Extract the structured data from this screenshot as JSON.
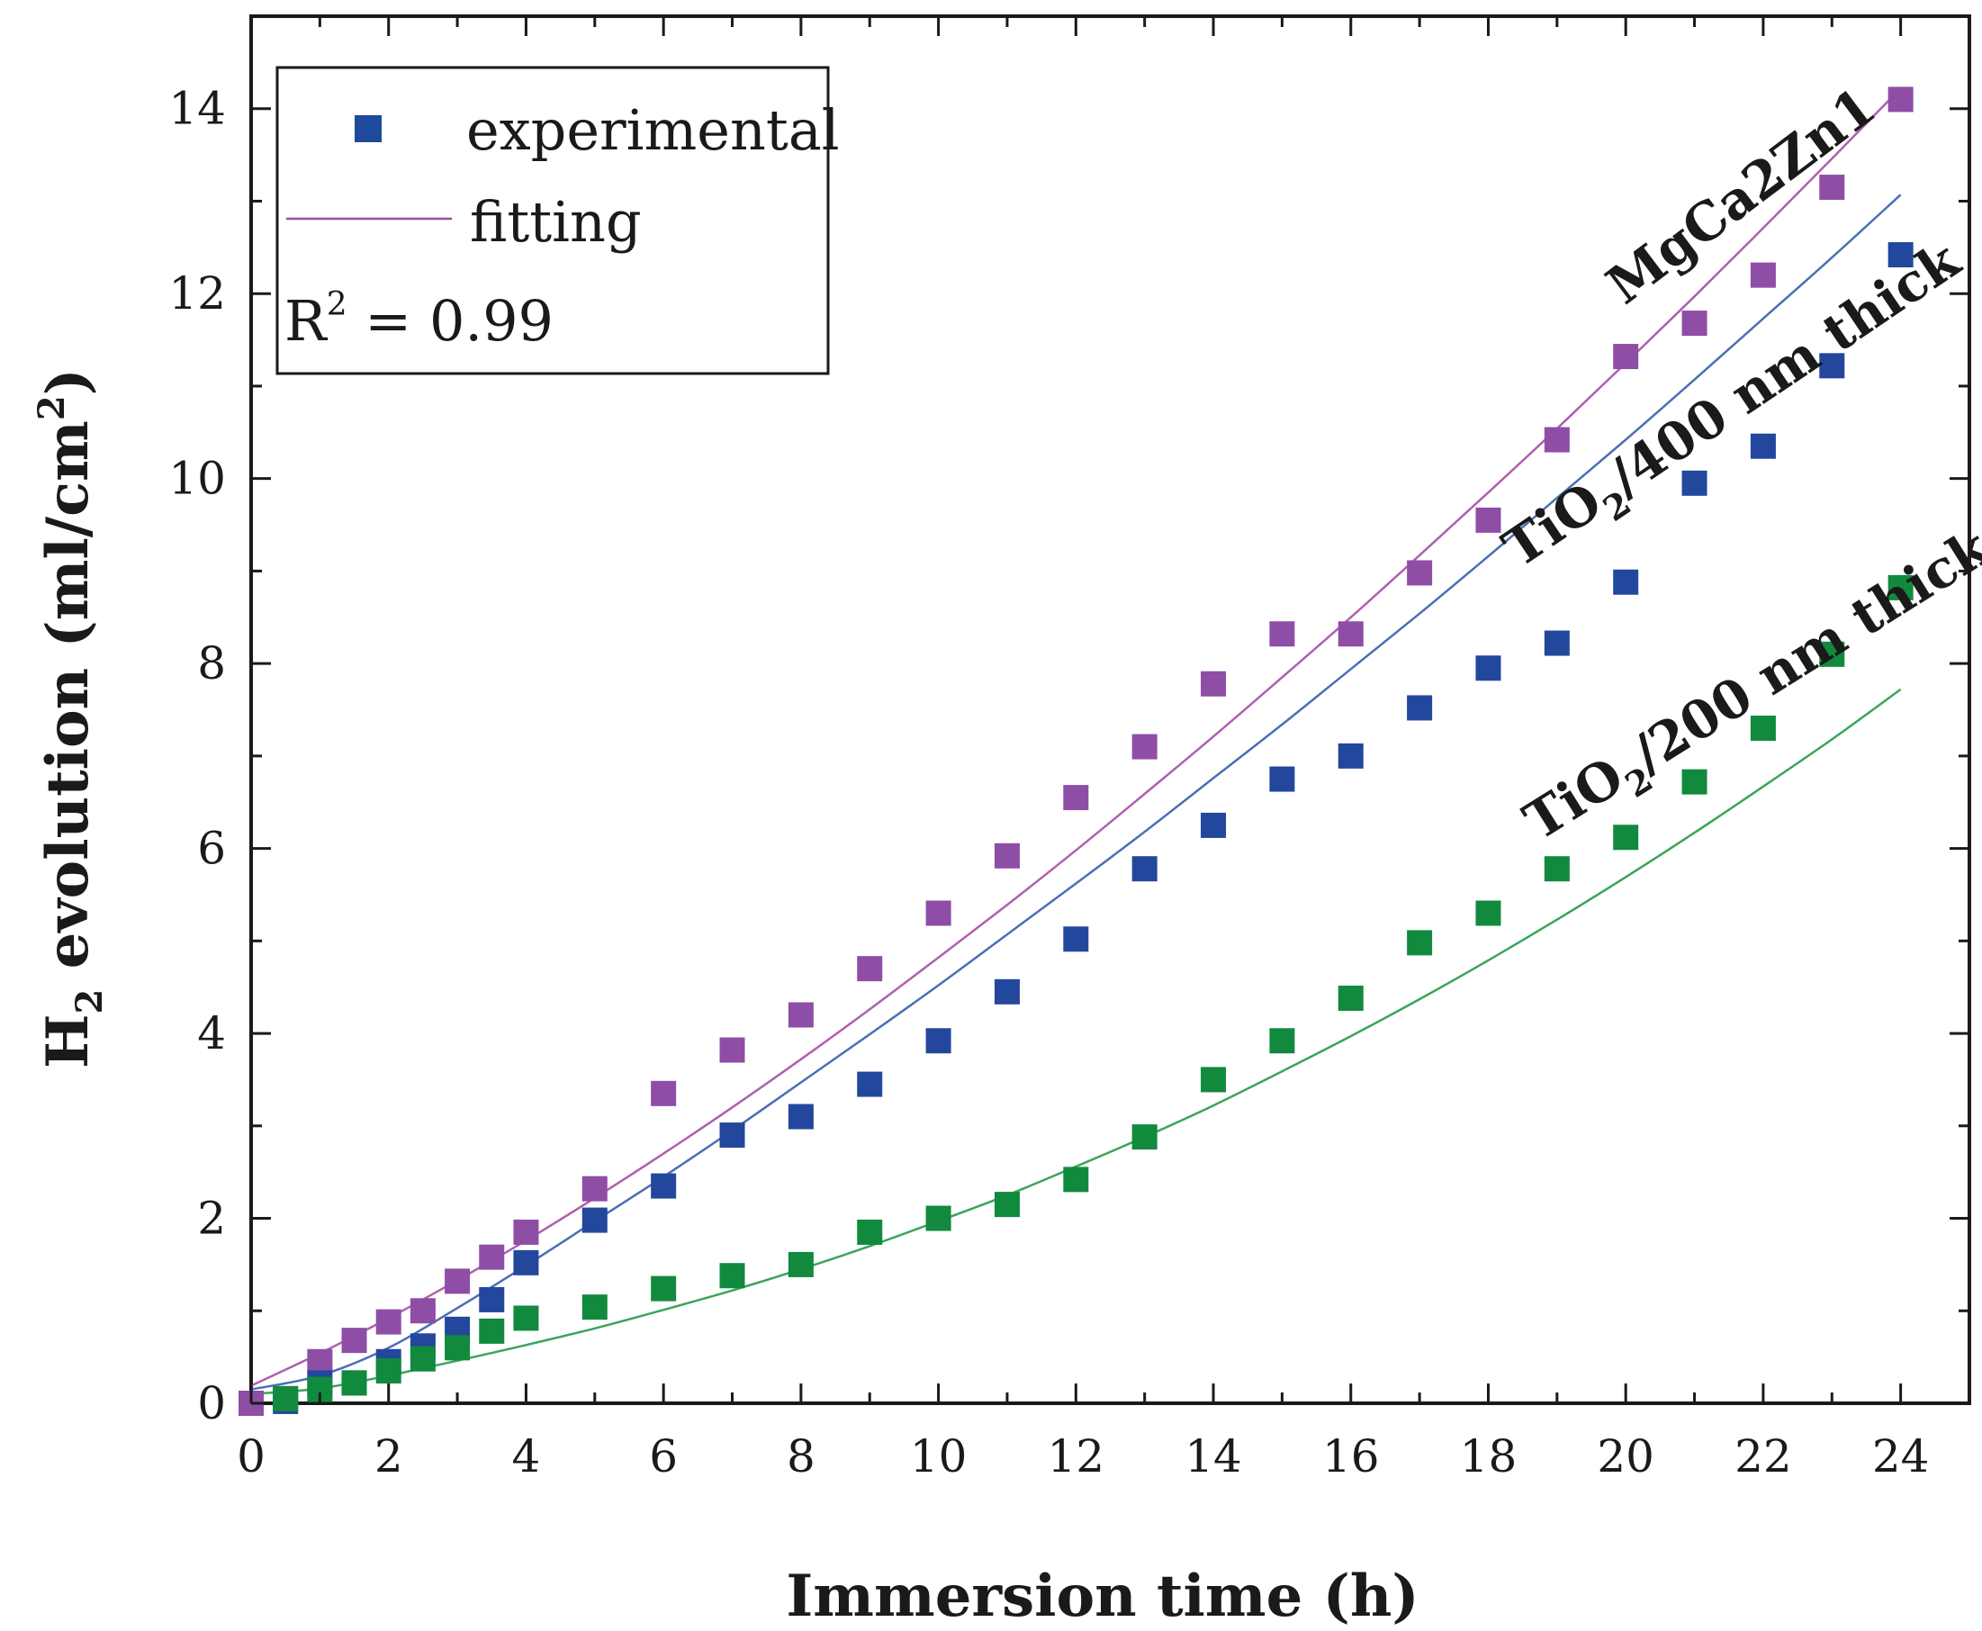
{
  "chart_data": {
    "type": "scatter",
    "xlabel": "Immersion time (h)",
    "ylabel_main": "H",
    "ylabel_sub": "2",
    "ylabel_rest": " evolution (ml/cm",
    "ylabel_sup": "2",
    "ylabel_end": ")",
    "xlim": [
      0,
      25
    ],
    "ylim": [
      0,
      15
    ],
    "xticks": [
      0,
      2,
      4,
      6,
      8,
      10,
      12,
      14,
      16,
      18,
      20,
      22,
      24
    ],
    "yticks": [
      0,
      2,
      4,
      6,
      8,
      10,
      12,
      14
    ],
    "grid": false,
    "legend": {
      "placement": "top-left",
      "experimental_label": "experimental",
      "fitting_label": "fitting",
      "r2_prefix": "R",
      "r2_sup": "2",
      "r2_value": " = 0.99",
      "marker_color": "#1f4a9c",
      "line_color": "#9b4f9b"
    },
    "series": [
      {
        "name": "MgCa2Zn1",
        "label_parts": [
          "MgCa2Zn1"
        ],
        "color": "#8e4ea6",
        "fit_color": "#b05fb0",
        "x": [
          0,
          0.5,
          1,
          1.5,
          2,
          2.5,
          3,
          3.5,
          4,
          5,
          6,
          7,
          8,
          9,
          10,
          11,
          12,
          13,
          14,
          15,
          16,
          17,
          18,
          19,
          20,
          21,
          22,
          23,
          24
        ],
        "y": [
          0.0,
          0.05,
          0.45,
          0.68,
          0.88,
          1.0,
          1.32,
          1.58,
          1.85,
          2.32,
          3.35,
          3.82,
          4.2,
          4.7,
          5.3,
          5.92,
          6.55,
          7.1,
          7.78,
          8.32,
          8.32,
          8.98,
          9.55,
          10.42,
          11.32,
          11.68,
          12.2,
          13.15,
          14.1
        ],
        "fit": [
          0.19,
          0.54,
          0.92,
          1.33,
          1.76,
          2.22,
          2.7,
          3.2,
          3.72,
          4.26,
          4.82,
          5.39,
          5.98,
          6.59,
          7.21,
          7.85,
          8.5,
          9.17,
          9.85,
          10.54,
          11.25,
          11.97,
          12.71,
          13.46,
          14.22
        ]
      },
      {
        "name": "TiO2/400 nm thick",
        "label_parts": [
          "TiO",
          "2",
          "/400 nm thick"
        ],
        "color": "#23479c",
        "fit_color": "#4a6fb5",
        "x": [
          0.5,
          1,
          1.5,
          2,
          2.5,
          3,
          3.5,
          4,
          5,
          6,
          7,
          8,
          9,
          10,
          11,
          12,
          13,
          14,
          15,
          16,
          17,
          18,
          19,
          20,
          21,
          22,
          23,
          24
        ],
        "y": [
          0.02,
          0.22,
          0.22,
          0.45,
          0.62,
          0.8,
          1.12,
          1.52,
          1.98,
          2.35,
          2.9,
          3.1,
          3.45,
          3.92,
          4.45,
          5.02,
          5.78,
          6.25,
          6.75,
          7.0,
          7.52,
          7.95,
          8.22,
          8.88,
          9.95,
          10.35,
          11.22,
          12.42
        ],
        "fit": [
          0.15,
          0.3,
          0.6,
          1.03,
          1.49,
          1.97,
          2.45,
          2.95,
          3.47,
          3.99,
          4.52,
          5.07,
          5.62,
          6.18,
          6.76,
          7.34,
          7.94,
          8.54,
          9.16,
          9.79,
          10.42,
          11.07,
          11.73,
          12.39,
          13.07
        ]
      },
      {
        "name": "TiO2/200 nm thick",
        "label_parts": [
          "TiO",
          "2",
          "/200 nm thick"
        ],
        "color": "#118a3e",
        "fit_color": "#3aa55a",
        "x": [
          0.5,
          1,
          1.5,
          2,
          2.5,
          3,
          3.5,
          4,
          5,
          6,
          7,
          8,
          9,
          10,
          11,
          12,
          13,
          14,
          15,
          16,
          17,
          18,
          19,
          20,
          21,
          22,
          23,
          24
        ],
        "y": [
          0.05,
          0.15,
          0.22,
          0.35,
          0.48,
          0.6,
          0.78,
          0.92,
          1.04,
          1.24,
          1.38,
          1.5,
          1.85,
          2.0,
          2.15,
          2.42,
          2.88,
          3.5,
          3.92,
          4.38,
          4.98,
          5.3,
          5.78,
          6.12,
          6.72,
          7.3,
          8.1,
          8.82
        ],
        "fit": [
          0.1,
          0.16,
          0.3,
          0.46,
          0.63,
          0.81,
          1.01,
          1.22,
          1.45,
          1.7,
          1.97,
          2.25,
          2.56,
          2.88,
          3.22,
          3.59,
          3.97,
          4.37,
          4.79,
          5.23,
          5.69,
          6.17,
          6.67,
          7.18,
          7.72
        ]
      }
    ]
  }
}
